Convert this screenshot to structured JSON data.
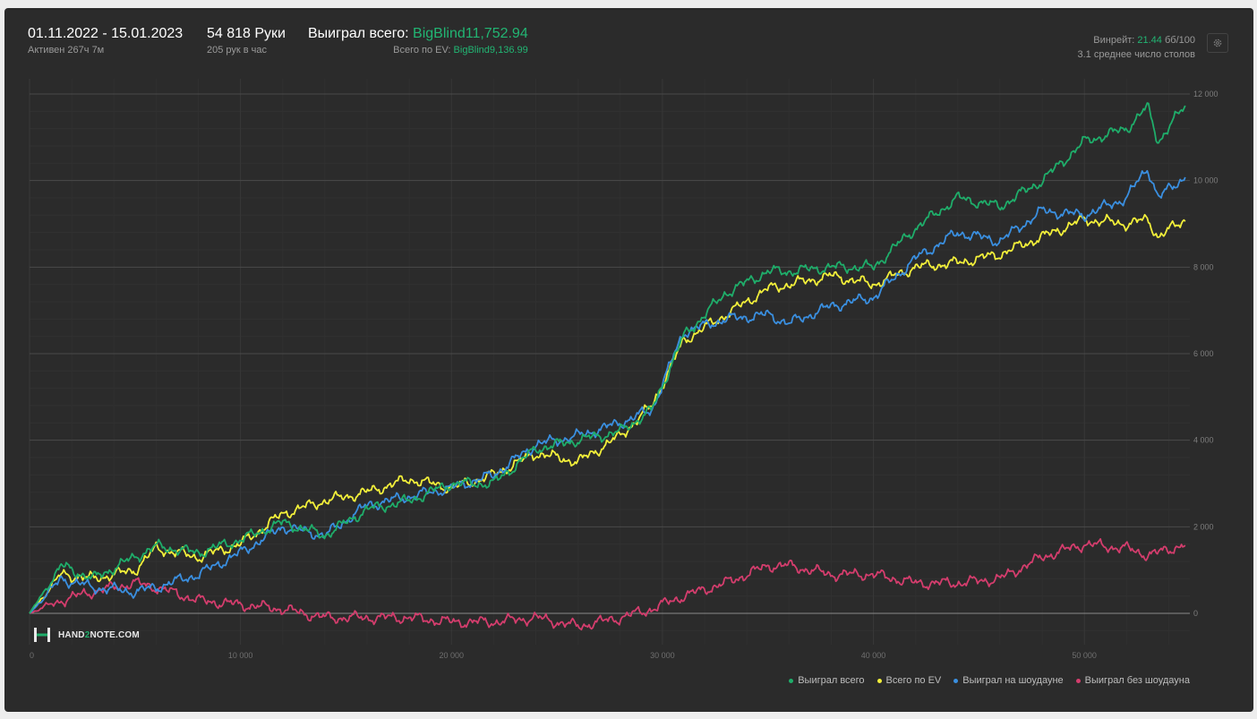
{
  "header": {
    "date_range": "01.11.2022 - 15.01.2023",
    "active_time": "Активен 267ч 7м",
    "hands_count": "54 818 Руки",
    "hands_per_hour": "205 рук в час",
    "won_total_label": "Выиграл всего:",
    "won_total_value": "BigBlind11,752.94",
    "ev_total_label": "Всего по EV:",
    "ev_total_value": "BigBlind9,136.99",
    "winrate_label": "Винрейт:",
    "winrate_value": "21.44",
    "winrate_unit": "бб/100",
    "avg_tables": "3.1 среднее число столов"
  },
  "icons": {
    "settings": "gear-icon",
    "logo": "hand2note-logo-icon"
  },
  "logo": {
    "text_part1": "HAND",
    "text_part2": "2",
    "text_part3": "NOTE.COM"
  },
  "colors": {
    "won_total": "#1fad6a",
    "ev_total": "#f2ef3a",
    "showdown": "#3a8fe0",
    "non_showdown": "#d43d6d",
    "panel_bg": "#2b2b2b"
  },
  "chart_data": {
    "type": "line",
    "xlim": [
      0,
      55000
    ],
    "ylim": [
      -500,
      12500
    ],
    "x_ticks": [
      0,
      10000,
      20000,
      30000,
      40000,
      50000
    ],
    "x_tick_labels": [
      "0",
      "10 000",
      "20 000",
      "30 000",
      "40 000",
      "50 000"
    ],
    "y_ticks": [
      0,
      2000,
      4000,
      6000,
      8000,
      10000,
      12000
    ],
    "y_tick_labels": [
      "0",
      "2 000",
      "4 000",
      "6 000",
      "8 000",
      "10 000",
      "12 000"
    ],
    "grid": true,
    "legend_position": "bottom-right",
    "x": [
      0,
      1500,
      3000,
      5000,
      6000,
      8000,
      10000,
      12000,
      14000,
      16000,
      18000,
      20000,
      22000,
      24000,
      26000,
      28000,
      29500,
      31000,
      33000,
      35000,
      36000,
      38000,
      40000,
      42000,
      44000,
      46000,
      48000,
      50000,
      52000,
      53000,
      53500,
      54800
    ],
    "series": [
      {
        "name": "Выиграл всего",
        "key": "won_total",
        "values": [
          0,
          1100,
          800,
          1300,
          1550,
          1400,
          1700,
          2100,
          1800,
          2400,
          2600,
          3000,
          3000,
          3800,
          4000,
          4200,
          4700,
          6400,
          7400,
          7900,
          7900,
          8000,
          8000,
          8900,
          9600,
          9400,
          10000,
          10900,
          11200,
          11700,
          10900,
          11750
        ]
      },
      {
        "name": "Всего по EV",
        "key": "ev_total",
        "values": [
          0,
          900,
          800,
          1000,
          1500,
          1300,
          1600,
          2300,
          2600,
          2800,
          3100,
          2900,
          3200,
          3700,
          3500,
          4100,
          4800,
          6300,
          6900,
          7500,
          7600,
          7800,
          7600,
          8000,
          8100,
          8300,
          8700,
          9100,
          9000,
          9100,
          8700,
          9100
        ]
      },
      {
        "name": "Выиграл на шоудауне",
        "key": "showdown",
        "values": [
          0,
          800,
          600,
          500,
          600,
          900,
          1400,
          2000,
          1800,
          2500,
          2700,
          2900,
          3200,
          3900,
          4100,
          4400,
          4700,
          6500,
          6800,
          6900,
          6700,
          7100,
          7300,
          8200,
          8800,
          8600,
          9300,
          9200,
          9600,
          10300,
          9600,
          10100
        ]
      },
      {
        "name": "Выиграл без шоудауна",
        "key": "non_showdown",
        "values": [
          0,
          300,
          500,
          700,
          600,
          300,
          200,
          100,
          -100,
          -100,
          -100,
          -200,
          -200,
          -100,
          -300,
          -100,
          100,
          400,
          700,
          1100,
          1100,
          900,
          900,
          700,
          700,
          800,
          1300,
          1600,
          1500,
          1350,
          1400,
          1600
        ]
      }
    ]
  }
}
